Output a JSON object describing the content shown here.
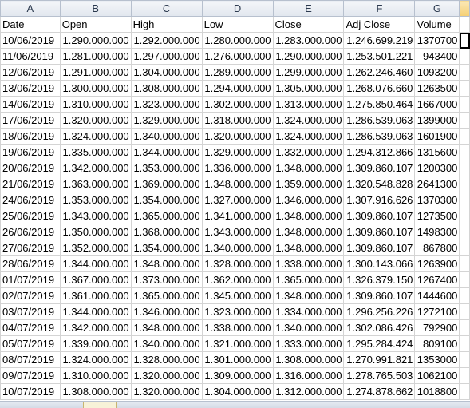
{
  "columns": [
    "A",
    "B",
    "C",
    "D",
    "E",
    "F",
    "G",
    ""
  ],
  "rows": [
    [
      "Date",
      "Open",
      "High",
      "Low",
      "Close",
      "Adj Close",
      "Volume"
    ],
    [
      "10/06/2019",
      "1.290.000.000",
      "1.292.000.000",
      "1.280.000.000",
      "1.283.000.000",
      "1.246.699.219",
      "1370700"
    ],
    [
      "11/06/2019",
      "1.281.000.000",
      "1.297.000.000",
      "1.276.000.000",
      "1.290.000.000",
      "1.253.501.221",
      "943400"
    ],
    [
      "12/06/2019",
      "1.291.000.000",
      "1.304.000.000",
      "1.289.000.000",
      "1.299.000.000",
      "1.262.246.460",
      "1093200"
    ],
    [
      "13/06/2019",
      "1.300.000.000",
      "1.308.000.000",
      "1.294.000.000",
      "1.305.000.000",
      "1.268.076.660",
      "1263500"
    ],
    [
      "14/06/2019",
      "1.310.000.000",
      "1.323.000.000",
      "1.302.000.000",
      "1.313.000.000",
      "1.275.850.464",
      "1667000"
    ],
    [
      "17/06/2019",
      "1.320.000.000",
      "1.329.000.000",
      "1.318.000.000",
      "1.324.000.000",
      "1.286.539.063",
      "1399000"
    ],
    [
      "18/06/2019",
      "1.324.000.000",
      "1.340.000.000",
      "1.320.000.000",
      "1.324.000.000",
      "1.286.539.063",
      "1601900"
    ],
    [
      "19/06/2019",
      "1.335.000.000",
      "1.344.000.000",
      "1.329.000.000",
      "1.332.000.000",
      "1.294.312.866",
      "1315600"
    ],
    [
      "20/06/2019",
      "1.342.000.000",
      "1.353.000.000",
      "1.336.000.000",
      "1.348.000.000",
      "1.309.860.107",
      "1200300"
    ],
    [
      "21/06/2019",
      "1.363.000.000",
      "1.369.000.000",
      "1.348.000.000",
      "1.359.000.000",
      "1.320.548.828",
      "2641300"
    ],
    [
      "24/06/2019",
      "1.353.000.000",
      "1.354.000.000",
      "1.327.000.000",
      "1.346.000.000",
      "1.307.916.626",
      "1370300"
    ],
    [
      "25/06/2019",
      "1.343.000.000",
      "1.365.000.000",
      "1.341.000.000",
      "1.348.000.000",
      "1.309.860.107",
      "1273500"
    ],
    [
      "26/06/2019",
      "1.350.000.000",
      "1.368.000.000",
      "1.343.000.000",
      "1.348.000.000",
      "1.309.860.107",
      "1498300"
    ],
    [
      "27/06/2019",
      "1.352.000.000",
      "1.354.000.000",
      "1.340.000.000",
      "1.348.000.000",
      "1.309.860.107",
      "867800"
    ],
    [
      "28/06/2019",
      "1.344.000.000",
      "1.348.000.000",
      "1.328.000.000",
      "1.338.000.000",
      "1.300.143.066",
      "1263900"
    ],
    [
      "01/07/2019",
      "1.367.000.000",
      "1.373.000.000",
      "1.362.000.000",
      "1.365.000.000",
      "1.326.379.150",
      "1267400"
    ],
    [
      "02/07/2019",
      "1.361.000.000",
      "1.365.000.000",
      "1.345.000.000",
      "1.348.000.000",
      "1.309.860.107",
      "1444600"
    ],
    [
      "03/07/2019",
      "1.344.000.000",
      "1.346.000.000",
      "1.323.000.000",
      "1.334.000.000",
      "1.296.256.226",
      "1272100"
    ],
    [
      "04/07/2019",
      "1.342.000.000",
      "1.348.000.000",
      "1.338.000.000",
      "1.340.000.000",
      "1.302.086.426",
      "792900"
    ],
    [
      "05/07/2019",
      "1.339.000.000",
      "1.340.000.000",
      "1.321.000.000",
      "1.333.000.000",
      "1.295.284.424",
      "809100"
    ],
    [
      "08/07/2019",
      "1.324.000.000",
      "1.328.000.000",
      "1.301.000.000",
      "1.308.000.000",
      "1.270.991.821",
      "1353000"
    ],
    [
      "09/07/2019",
      "1.310.000.000",
      "1.320.000.000",
      "1.309.000.000",
      "1.316.000.000",
      "1.278.765.503",
      "1062100"
    ],
    [
      "10/07/2019",
      "1.308.000.000",
      "1.320.000.000",
      "1.304.000.000",
      "1.312.000.000",
      "1.274.878.662",
      "1018800"
    ]
  ]
}
